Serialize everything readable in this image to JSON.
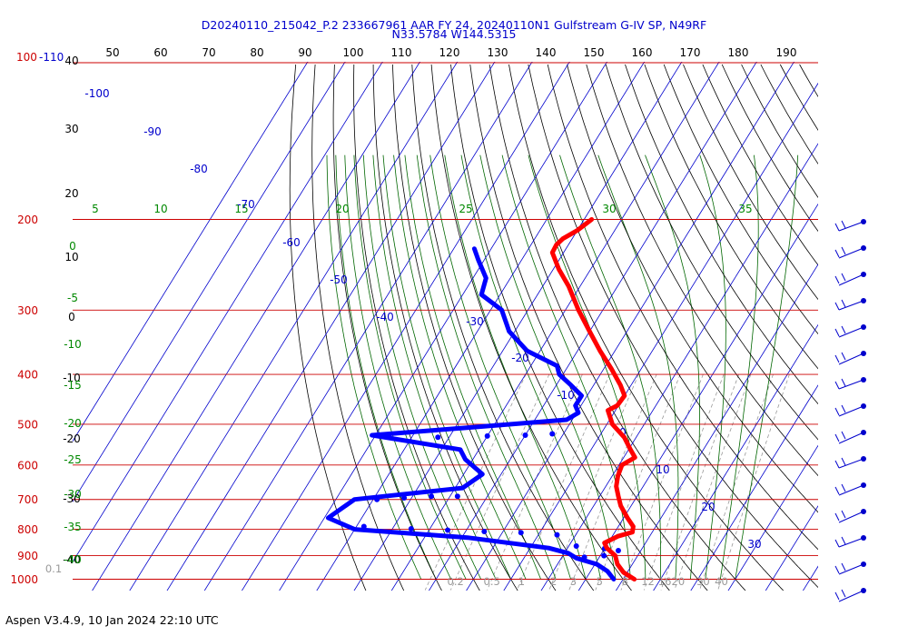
{
  "chart_data": {
    "type": "skew-t",
    "title": [
      "D20240110_215042_P.2 233667961 AAR FY 24, 20240110N1 Gulfstream G-IV SP, N49RF",
      "N33.5784 W144.5315"
    ],
    "footer": "Aspen V3.4.9, 10 Jan 2024  22:10 UTC",
    "colors": {
      "temperature": "#ff0000",
      "dewpoint": "#0000ff",
      "isobar": "#cc0000",
      "isotherm": "#0000cc",
      "dry_adiabat": "#000000",
      "moist_adiabat": "#888888",
      "mixing_ratio": "#006600"
    },
    "pressure_levels": [
      {
        "p": 200,
        "label": "200"
      },
      {
        "p": 300,
        "label": "300"
      },
      {
        "p": 400,
        "label": "400"
      },
      {
        "p": 500,
        "label": "500"
      },
      {
        "p": 600,
        "label": "600"
      },
      {
        "p": 700,
        "label": "700"
      },
      {
        "p": 800,
        "label": "800"
      },
      {
        "p": 900,
        "label": "900"
      },
      {
        "p": 1000,
        "label": "1000"
      }
    ],
    "top_pressure_label": "100",
    "top_pressure_label_extra": "-110",
    "isotherm_labels": [
      "-100",
      "-90",
      "-80",
      "-70",
      "-60",
      "-50",
      "-40",
      "-30",
      "-20",
      "-10",
      "0",
      "10",
      "20",
      "30"
    ],
    "isotherm_values": [
      -100,
      -90,
      -80,
      -70,
      -60,
      -50,
      -40,
      -30,
      -20,
      -10,
      0,
      10,
      20,
      30
    ],
    "theta_labels": [
      "50",
      "60",
      "70",
      "80",
      "90",
      "100",
      "110",
      "120",
      "130",
      "140",
      "150",
      "160",
      "170",
      "180",
      "190"
    ],
    "theta_values": [
      50,
      60,
      70,
      80,
      90,
      100,
      110,
      120,
      130,
      140,
      150,
      160,
      170,
      180,
      190
    ],
    "thetae_labels": [
      "5",
      "10",
      "15",
      "20",
      "25",
      "30",
      "35"
    ],
    "thetae_values": [
      5,
      10,
      15,
      20,
      25,
      30,
      35
    ],
    "mixing_ratio_labels": [
      "0.1",
      "0.2",
      "0.5",
      "1",
      "2",
      "3",
      "5",
      "8",
      "12",
      "16",
      "20",
      "30",
      "40"
    ],
    "mixing_ratio_values": [
      0.1,
      0.2,
      0.5,
      1,
      2,
      3,
      5,
      8,
      12,
      16,
      20,
      30,
      40
    ],
    "left_axis_black_labels": [
      "40",
      "30",
      "20",
      "10",
      "0",
      "-10",
      "-20",
      "-30",
      "-40"
    ],
    "left_axis_green_labels": [
      "0",
      "-5",
      "-10",
      "-15",
      "-20",
      "-25",
      "-30",
      "-35",
      "-40"
    ],
    "temperature_profile": [
      [
        200,
        -58.0
      ],
      [
        210,
        -60.0
      ],
      [
        218,
        -62.5
      ],
      [
        224,
        -63.2
      ],
      [
        232,
        -63.0
      ],
      [
        250,
        -58.5
      ],
      [
        270,
        -53.0
      ],
      [
        300,
        -46.5
      ],
      [
        330,
        -40.0
      ],
      [
        360,
        -34.0
      ],
      [
        390,
        -28.0
      ],
      [
        420,
        -22.8
      ],
      [
        440,
        -20.0
      ],
      [
        460,
        -20.3
      ],
      [
        470,
        -22.0
      ],
      [
        500,
        -18.5
      ],
      [
        530,
        -13.2
      ],
      [
        560,
        -9.5
      ],
      [
        580,
        -7.0
      ],
      [
        600,
        -9.2
      ],
      [
        630,
        -8.5
      ],
      [
        660,
        -7.2
      ],
      [
        690,
        -5.0
      ],
      [
        720,
        -2.8
      ],
      [
        760,
        1.0
      ],
      [
        790,
        4.0
      ],
      [
        810,
        4.7
      ],
      [
        825,
        1.5
      ],
      [
        850,
        -1.0
      ],
      [
        870,
        0.5
      ],
      [
        900,
        4.0
      ],
      [
        935,
        6.0
      ],
      [
        970,
        9.0
      ],
      [
        1000,
        13.0
      ]
    ],
    "dewpoint_profile": [
      [
        228,
        -84.5
      ],
      [
        240,
        -81.5
      ],
      [
        260,
        -76.5
      ],
      [
        280,
        -75.0
      ],
      [
        300,
        -67.0
      ],
      [
        330,
        -61.5
      ],
      [
        360,
        -53.5
      ],
      [
        385,
        -43.0
      ],
      [
        400,
        -41.0
      ],
      [
        420,
        -36.0
      ],
      [
        440,
        -31.5
      ],
      [
        460,
        -31.5
      ],
      [
        475,
        -29.5
      ],
      [
        490,
        -31.5
      ],
      [
        525,
        -81.0
      ],
      [
        560,
        -55.0
      ],
      [
        585,
        -52.0
      ],
      [
        625,
        -45.0
      ],
      [
        665,
        -48.0
      ],
      [
        700,
        -75.0
      ],
      [
        760,
        -79.0
      ],
      [
        800,
        -70.0
      ],
      [
        830,
        -38.5
      ],
      [
        870,
        -15.0
      ],
      [
        890,
        -9.0
      ],
      [
        910,
        -6.0
      ],
      [
        935,
        0.5
      ],
      [
        965,
        4.5
      ],
      [
        1000,
        7.5
      ]
    ],
    "dewpoint_scatter": [
      [
        530,
        -63.0
      ],
      [
        527,
        -50.0
      ],
      [
        525,
        -40.0
      ],
      [
        522,
        -33.0
      ],
      [
        700,
        -69.0
      ],
      [
        695,
        -62.0
      ],
      [
        690,
        -55.0
      ],
      [
        690,
        -48.0
      ],
      [
        790,
        -68.0
      ],
      [
        798,
        -55.0
      ],
      [
        803,
        -45.0
      ],
      [
        808,
        -35.0
      ],
      [
        812,
        -25.0
      ],
      [
        820,
        -15.0
      ],
      [
        862,
        -8.0
      ],
      [
        872,
        0.0
      ],
      [
        880,
        4.0
      ],
      [
        900,
        1.0
      ],
      [
        906,
        -4.0
      ]
    ],
    "wind_barb_count": 15
  }
}
